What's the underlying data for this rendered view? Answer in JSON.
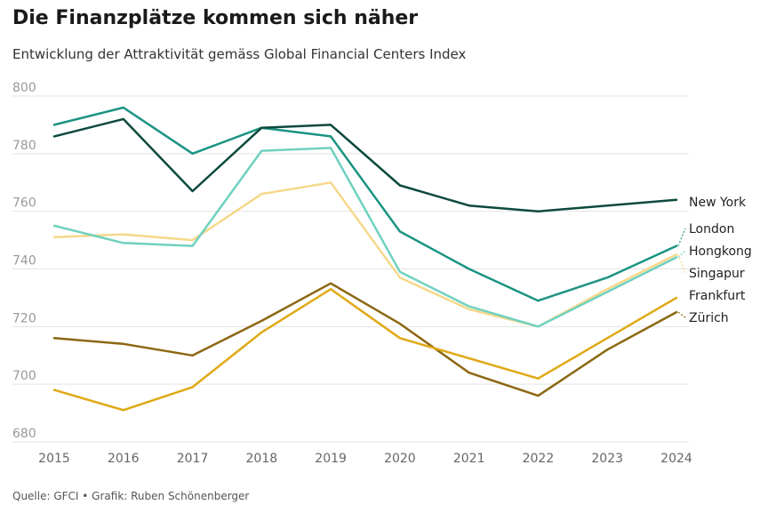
{
  "title": "Die Finanzplätze kommen sich näher",
  "subtitle": "Entwicklung der Attraktivität gemäss Global Financial Centers Index",
  "source": "Quelle: GFCI • Grafik: Ruben Schönenberger",
  "chart_data": {
    "type": "line",
    "title": "Die Finanzplätze kommen sich näher",
    "subtitle": "Entwicklung der Attraktivität gemäss Global Financial Centers Index",
    "xlabel": "",
    "ylabel": "",
    "x": [
      "2015",
      "2016",
      "2017",
      "2018",
      "2019",
      "2020",
      "2021",
      "2022",
      "2023",
      "2024"
    ],
    "ylim": [
      680,
      800
    ],
    "yticks": [
      "800",
      "780",
      "760",
      "740",
      "720",
      "700",
      "680"
    ],
    "grid": true,
    "legend": "direct labels at right end of lines",
    "series": [
      {
        "name": "New York",
        "color": "#0d4a3e",
        "values": [
          786,
          792,
          767,
          789,
          790,
          769,
          762,
          760,
          762,
          764
        ]
      },
      {
        "name": "London",
        "color": "#1a9482",
        "values": [
          790,
          796,
          780,
          789,
          786,
          753,
          740,
          729,
          737,
          748
        ]
      },
      {
        "name": "Hongkong",
        "color": "#6fd1c0",
        "values": [
          755,
          749,
          748,
          781,
          782,
          739,
          727,
          720,
          732,
          744
        ]
      },
      {
        "name": "Singapur",
        "color": "#f6d88a",
        "values": [
          751,
          752,
          750,
          766,
          770,
          737,
          726,
          720,
          733,
          745
        ]
      },
      {
        "name": "Frankfurt",
        "color": "#dfa915",
        "values": [
          698,
          691,
          699,
          718,
          733,
          716,
          709,
          702,
          716,
          730
        ]
      },
      {
        "name": "Zürich",
        "color": "#8c6711",
        "values": [
          716,
          714,
          710,
          722,
          735,
          721,
          704,
          696,
          712,
          725
        ]
      }
    ]
  }
}
